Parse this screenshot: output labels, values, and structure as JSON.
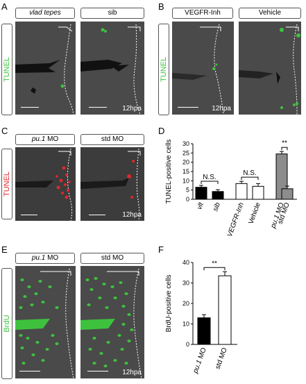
{
  "panels": {
    "A": {
      "letter": "A",
      "labels": [
        "vlad tepes",
        "sib"
      ],
      "stain": "TUNEL",
      "time": "12hpa"
    },
    "B": {
      "letter": "B",
      "labels": [
        "VEGFR-Inh",
        "Vehicle"
      ],
      "stain": "TUNEL",
      "time": "12hpa"
    },
    "C": {
      "letter": "C",
      "labels": [
        "pu.1",
        "MO",
        "std MO"
      ],
      "stain": "TUNEL",
      "time": "12hpa"
    },
    "D": {
      "letter": "D"
    },
    "E": {
      "letter": "E",
      "labels": [
        "pu.1",
        "MO",
        "std MO"
      ],
      "stain": "BrdU",
      "time": "12hpa"
    },
    "F": {
      "letter": "F"
    }
  },
  "colors": {
    "tunel_green": "#3ec23e",
    "tunel_red": "#e0282c",
    "brdu_green": "#3ec23e",
    "bar_black": "#000000",
    "bar_gray": "#8c8c8c",
    "bar_white": "#ffffff"
  },
  "chart_data": [
    {
      "id": "D",
      "type": "bar",
      "categories": [
        "vlt",
        "sib",
        "VEGFR-Inh",
        "Vehicle",
        "pu.1 MO",
        "std MO"
      ],
      "values": [
        6.5,
        4.2,
        8.5,
        7.0,
        24.5,
        5.7
      ],
      "errors": [
        1.0,
        1.0,
        1.2,
        1.5,
        1.3,
        1.4
      ],
      "ylabel": "TUNEL-positive cells",
      "ylim": [
        0,
        30
      ],
      "yticks": [
        0,
        5,
        10,
        15,
        20,
        25,
        30
      ],
      "significance": [
        {
          "between": [
            "vlt",
            "sib"
          ],
          "label": "N.S."
        },
        {
          "between": [
            "VEGFR-Inh",
            "Vehicle"
          ],
          "label": "N.S."
        },
        {
          "between": [
            "pu.1 MO",
            "std MO"
          ],
          "label": "**"
        }
      ],
      "grid": false
    },
    {
      "id": "F",
      "type": "bar",
      "categories": [
        "pu.1 MO",
        "std MO"
      ],
      "values": [
        13.0,
        33.5
      ],
      "errors": [
        1.5,
        2.0
      ],
      "ylabel": "BrdU-positive cells",
      "ylim": [
        0,
        40
      ],
      "yticks": [
        0,
        10,
        20,
        30,
        40
      ],
      "significance": [
        {
          "between": [
            "pu.1 MO",
            "std MO"
          ],
          "label": "**"
        }
      ],
      "grid": false
    }
  ]
}
